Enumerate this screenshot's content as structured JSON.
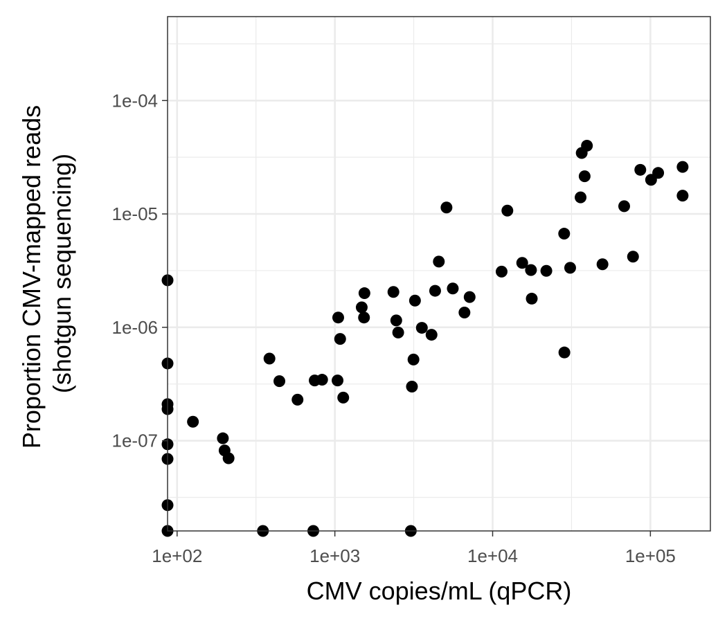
{
  "chart_data": {
    "type": "scatter",
    "xlabel": "CMV copies/mL (qPCR)",
    "ylabel": [
      "Proportion CMV-mapped reads",
      "(shotgun sequencing)"
    ],
    "x_scale": "log10",
    "y_scale": "log10",
    "xlim": [
      87,
      240000
    ],
    "ylim": [
      1.6e-08,
      0.00055
    ],
    "x_ticks": [
      100,
      1000,
      10000,
      100000
    ],
    "x_tick_labels": [
      "1e+02",
      "1e+03",
      "1e+04",
      "1e+05"
    ],
    "y_ticks": [
      1e-07,
      1e-06,
      1e-05,
      0.0001
    ],
    "y_tick_labels": [
      "1e-07",
      "1e-06",
      "1e-05",
      "1e-04"
    ],
    "grid": true,
    "point_color": "#000000",
    "points": [
      [
        87,
        2.6e-06
      ],
      [
        87,
        4.8e-07
      ],
      [
        87,
        2.1e-07
      ],
      [
        87,
        1.9e-07
      ],
      [
        87,
        9.3e-08
      ],
      [
        87,
        6.9e-08
      ],
      [
        87,
        2.7e-08
      ],
      [
        87,
        1.6e-08
      ],
      [
        126,
        1.47e-07
      ],
      [
        195,
        1.05e-07
      ],
      [
        200,
        8.2e-08
      ],
      [
        212,
        7e-08
      ],
      [
        350,
        1.6e-08
      ],
      [
        385,
        5.3e-07
      ],
      [
        445,
        3.35e-07
      ],
      [
        580,
        2.3e-07
      ],
      [
        730,
        1.6e-08
      ],
      [
        745,
        3.4e-07
      ],
      [
        830,
        3.45e-07
      ],
      [
        1040,
        3.4e-07
      ],
      [
        1050,
        1.22e-06
      ],
      [
        1080,
        7.9e-07
      ],
      [
        1130,
        2.4e-07
      ],
      [
        1480,
        1.5e-06
      ],
      [
        1530,
        1.22e-06
      ],
      [
        1540,
        2e-06
      ],
      [
        2350,
        2.05e-06
      ],
      [
        2450,
        1.15e-06
      ],
      [
        2520,
        9e-07
      ],
      [
        3030,
        1.6e-08
      ],
      [
        3080,
        3e-07
      ],
      [
        3150,
        5.2e-07
      ],
      [
        3220,
        1.72e-06
      ],
      [
        3560,
        9.9e-07
      ],
      [
        4100,
        8.6e-07
      ],
      [
        4320,
        2.1e-06
      ],
      [
        4560,
        3.8e-06
      ],
      [
        5100,
        1.14e-05
      ],
      [
        5590,
        2.2e-06
      ],
      [
        6630,
        1.35e-06
      ],
      [
        7150,
        1.85e-06
      ],
      [
        11400,
        3.1e-06
      ],
      [
        12400,
        1.07e-05
      ],
      [
        15400,
        3.7e-06
      ],
      [
        17500,
        3.2e-06
      ],
      [
        17700,
        1.79e-06
      ],
      [
        21900,
        3.15e-06
      ],
      [
        28400,
        6.7e-06
      ],
      [
        28500,
        6e-07
      ],
      [
        31000,
        3.35e-06
      ],
      [
        36100,
        1.4e-05
      ],
      [
        36700,
        3.45e-05
      ],
      [
        38300,
        2.15e-05
      ],
      [
        39600,
        4e-05
      ],
      [
        49700,
        3.6e-06
      ],
      [
        68200,
        1.17e-05
      ],
      [
        77600,
        4.2e-06
      ],
      [
        86300,
        2.45e-05
      ],
      [
        101000,
        2e-05
      ],
      [
        112000,
        2.3e-05
      ],
      [
        160000,
        2.6e-05
      ],
      [
        160000,
        1.45e-05
      ]
    ]
  }
}
